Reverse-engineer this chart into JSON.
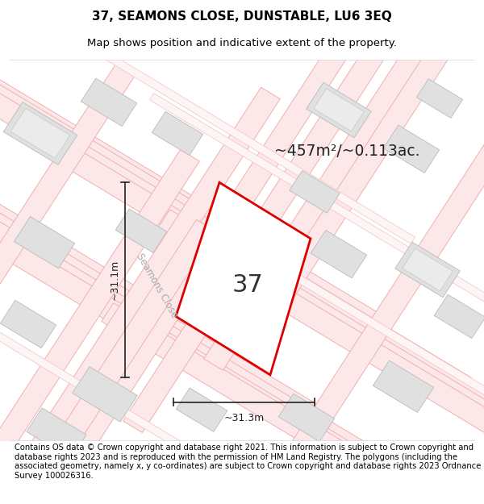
{
  "title": "37, SEAMONS CLOSE, DUNSTABLE, LU6 3EQ",
  "subtitle": "Map shows position and indicative extent of the property.",
  "footer": "Contains OS data © Crown copyright and database right 2021. This information is subject to Crown copyright and database rights 2023 and is reproduced with the permission of HM Land Registry. The polygons (including the associated geometry, namely x, y co-ordinates) are subject to Crown copyright and database rights 2023 Ordnance Survey 100026316.",
  "area_text": "~457m²/~0.113ac.",
  "label": "37",
  "dim_h": "~31.1m",
  "dim_w": "~31.3m",
  "road_label": "Seamons Close",
  "bg_color": "#f8f8f8",
  "plot_color": "#dd0000",
  "building_fill": "#e0e0e0",
  "building_edge": "#bbbbbb",
  "road_outline_color": "#f0b0b0",
  "road_fill_color": "#fce8e8",
  "dim_color": "#222222",
  "title_fontsize": 11,
  "subtitle_fontsize": 9.5,
  "footer_fontsize": 7.2
}
